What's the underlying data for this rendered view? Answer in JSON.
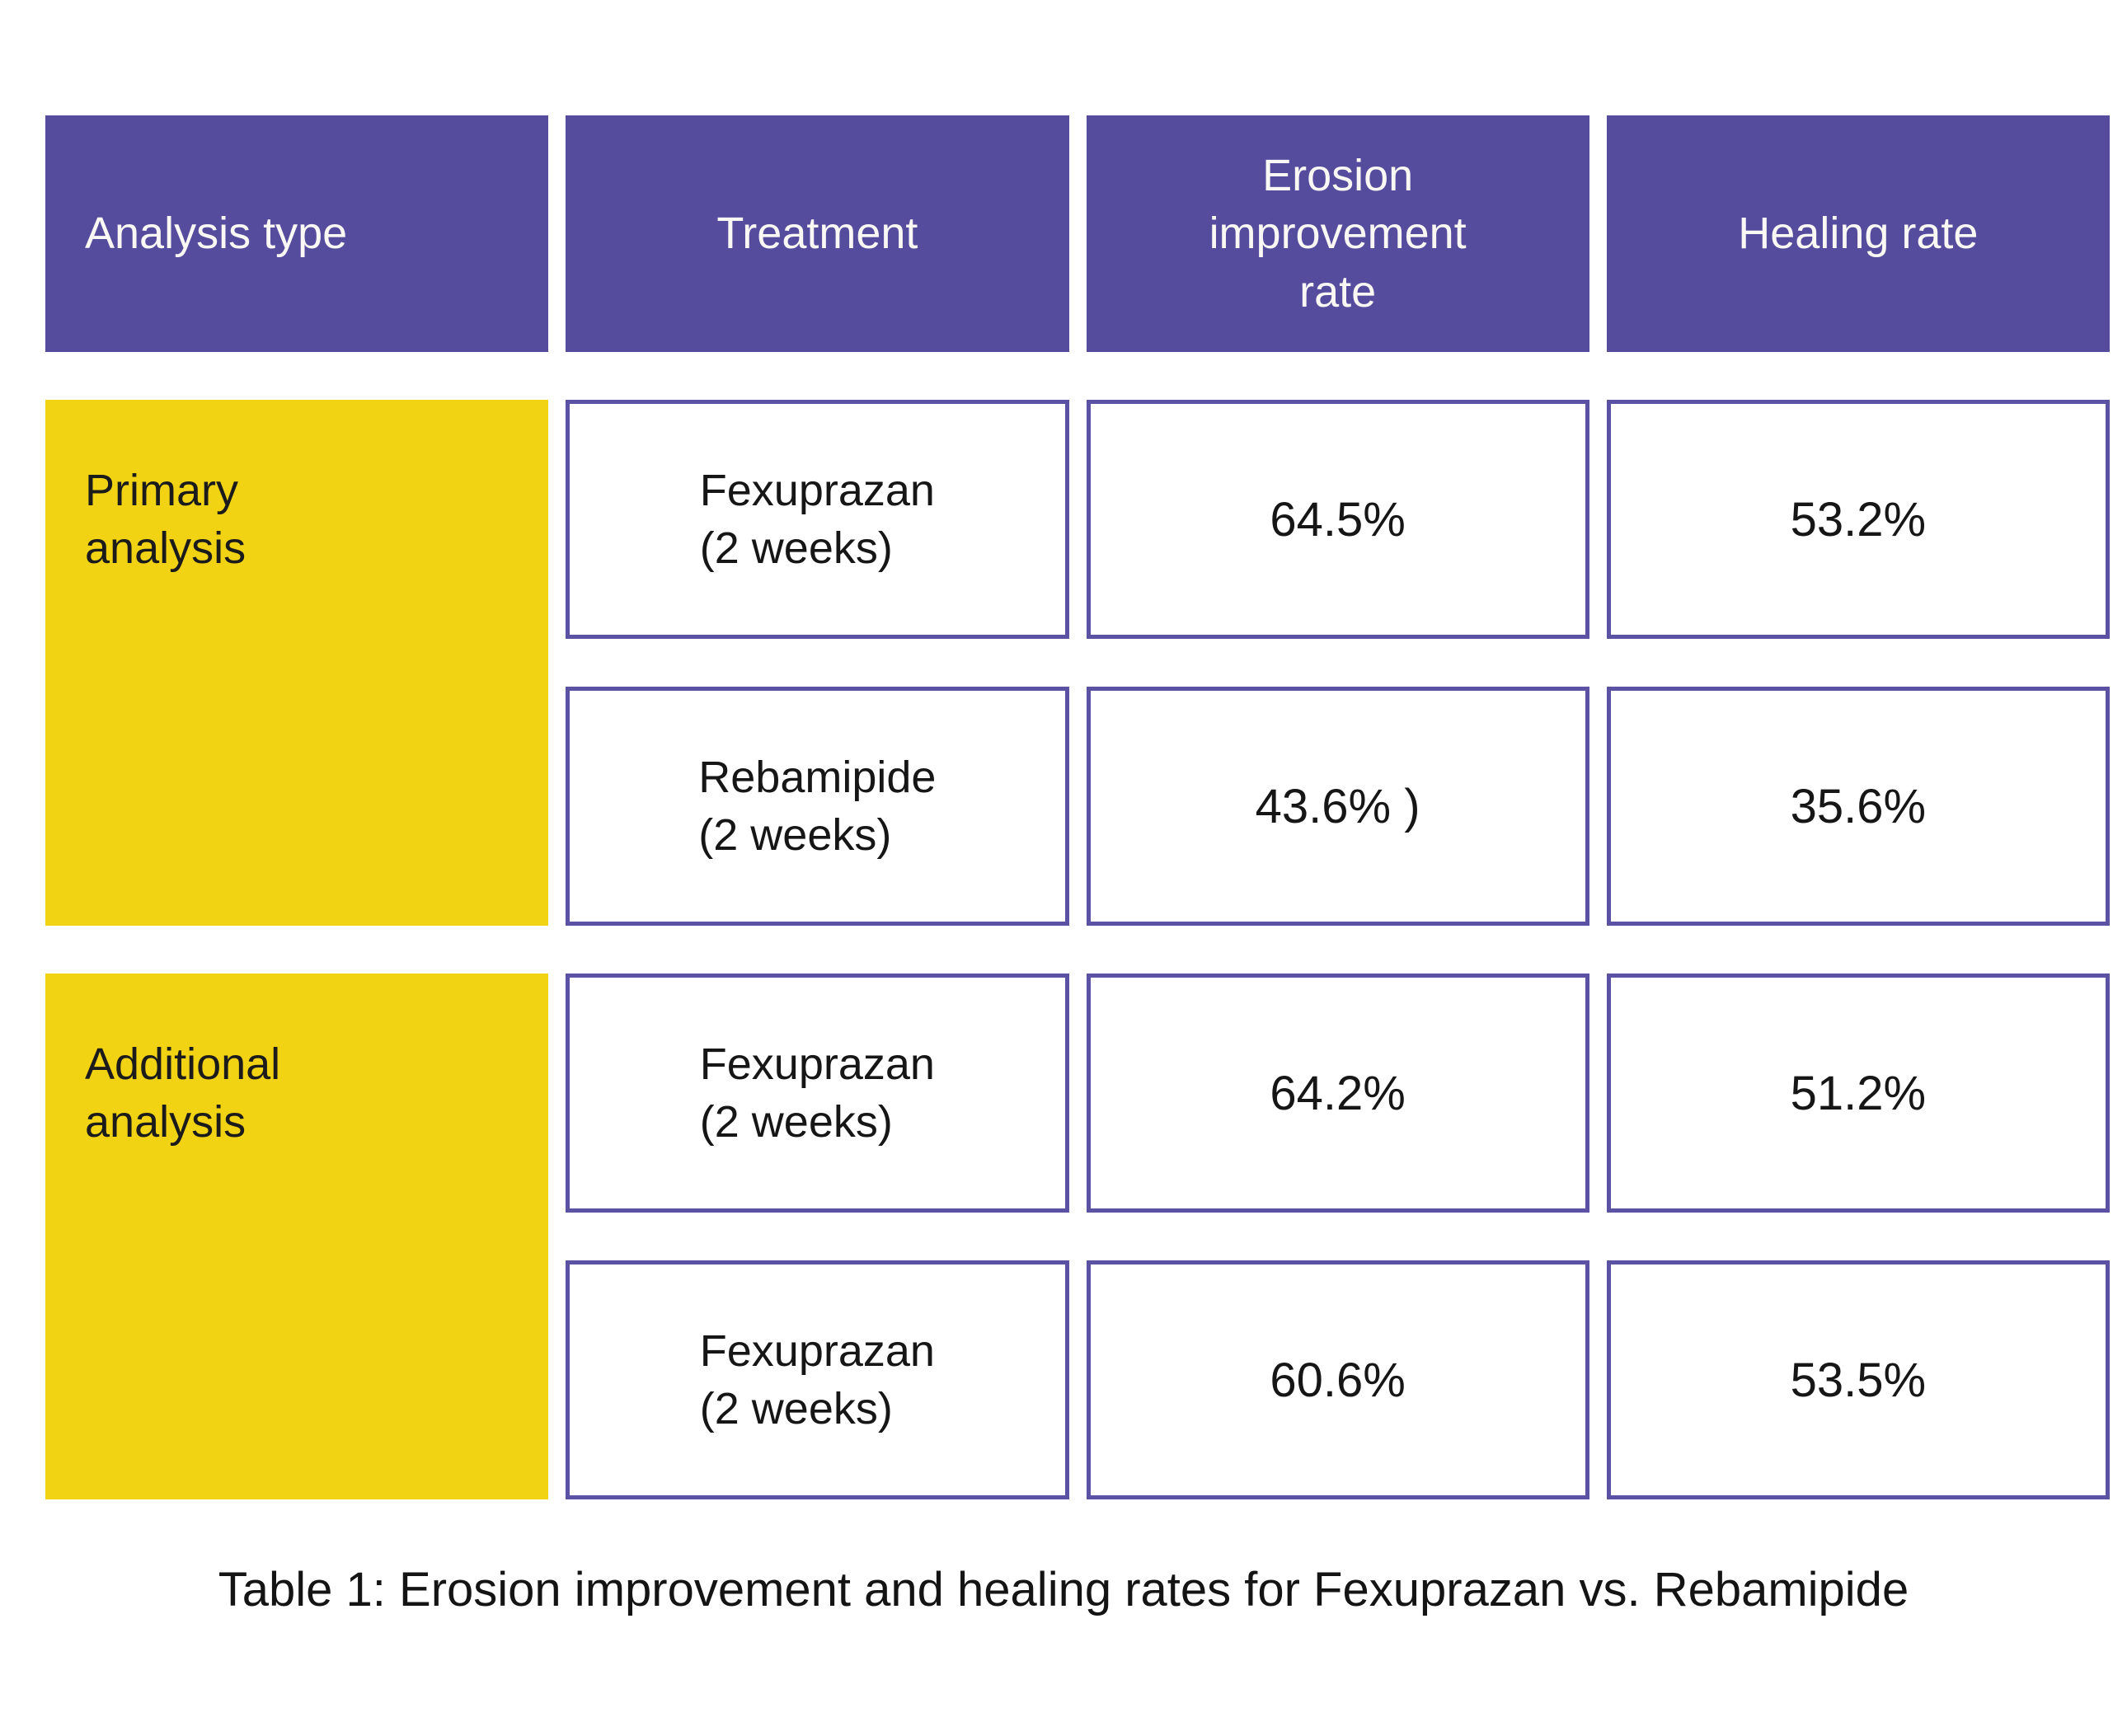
{
  "page": {
    "caption": "Table 1: Erosion improvement and healing rates for Fexuprazan vs. Rebamipide"
  },
  "colors": {
    "header_bg": "#564C9E",
    "header_text": "#F9F8F4",
    "group_bg": "#F2D313",
    "cell_border": "#5C52A3",
    "body_text": "#1E1E1E",
    "background": "#FFFFFF"
  },
  "table": {
    "columns": [
      "Analysis type",
      "Treatment",
      "Erosion improvement rate",
      "Healing rate"
    ],
    "groups": [
      {
        "label": "Primary analysis",
        "rows": [
          {
            "treatment_name": "Fexuprazan",
            "treatment_note": "(2 weeks)",
            "erosion_improvement_rate": "64.5%",
            "healing_rate": "53.2%"
          },
          {
            "treatment_name": "Rebamipide",
            "treatment_note": "(2 weeks)",
            "erosion_improvement_rate": "43.6% )",
            "healing_rate": "35.6%"
          }
        ]
      },
      {
        "label": "Additional analysis",
        "rows": [
          {
            "treatment_name": "Fexuprazan",
            "treatment_note": "(2 weeks)",
            "erosion_improvement_rate": "64.2%",
            "healing_rate": "51.2%"
          },
          {
            "treatment_name": "Fexuprazan",
            "treatment_note": "(2 weeks)",
            "erosion_improvement_rate": "60.6%",
            "healing_rate": "53.5%"
          }
        ]
      }
    ]
  },
  "chart_data": {
    "type": "table",
    "title": "Table 1: Erosion improvement and healing rates for Fexuprazan vs. Rebamipide",
    "columns": [
      "Analysis type",
      "Treatment",
      "Erosion improvement rate",
      "Healing rate"
    ],
    "rows": [
      [
        "Primary analysis",
        "Fexuprazan (2 weeks)",
        "64.5%",
        "53.2%"
      ],
      [
        "Primary analysis",
        "Rebamipide (2 weeks)",
        "43.6% )",
        "35.6%"
      ],
      [
        "Additional analysis",
        "Fexuprazan (2 weeks)",
        "64.2%",
        "51.2%"
      ],
      [
        "Additional analysis",
        "Fexuprazan (2 weeks)",
        "60.6%",
        "53.5%"
      ]
    ],
    "layout": {
      "row_group_column": "Analysis type",
      "header_style": "solid purple cells",
      "group_style": "solid yellow cells",
      "data_style": "white cells with purple border"
    }
  }
}
